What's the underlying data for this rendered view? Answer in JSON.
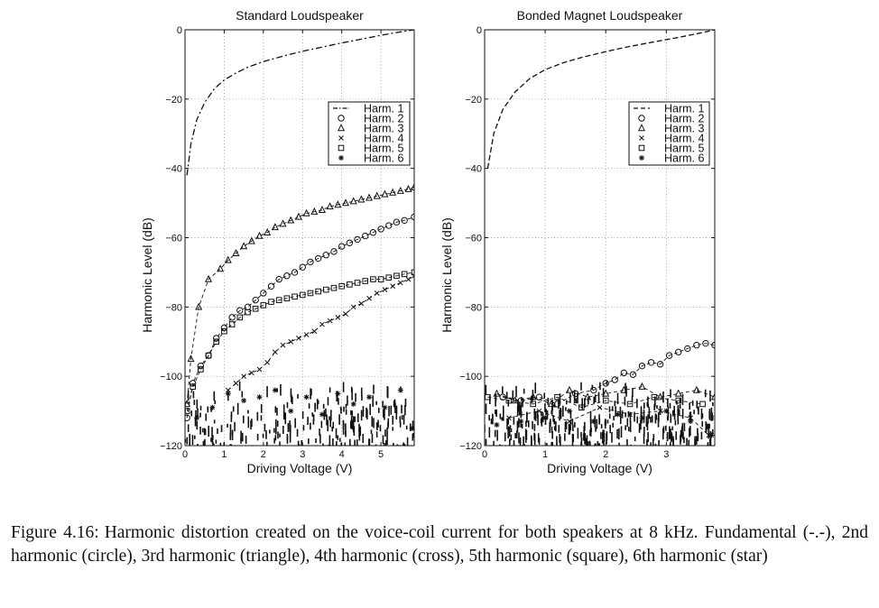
{
  "chart_data": [
    {
      "type": "line",
      "title": "Standard Loudspeaker",
      "xlabel": "Driving Voltage (V)",
      "ylabel": "Harmonic Level (dB)",
      "xlim": [
        0,
        5.85
      ],
      "ylim": [
        -120,
        0
      ],
      "xticks": [
        0,
        1,
        2,
        3,
        4,
        5
      ],
      "yticks": [
        0,
        -20,
        -40,
        -60,
        -80,
        -100,
        -120
      ],
      "grid": true,
      "legend_position": "top-right",
      "series": [
        {
          "name": "Harm. 1",
          "marker": "dashdot",
          "x": [
            0.05,
            0.15,
            0.3,
            0.5,
            0.75,
            1.0,
            1.3,
            1.6,
            2.0,
            2.5,
            3.0,
            3.5,
            4.0,
            4.5,
            5.0,
            5.5,
            5.85
          ],
          "y": [
            -42,
            -33,
            -26,
            -21,
            -17,
            -14.5,
            -12.5,
            -10.8,
            -9.2,
            -7.6,
            -6.2,
            -5.0,
            -3.8,
            -2.7,
            -1.6,
            -0.6,
            0
          ]
        },
        {
          "name": "Harm. 2",
          "marker": "circle",
          "x": [
            0.05,
            0.2,
            0.4,
            0.6,
            0.8,
            1.0,
            1.2,
            1.4,
            1.6,
            1.8,
            2.0,
            2.2,
            2.4,
            2.6,
            2.8,
            3.0,
            3.2,
            3.4,
            3.6,
            3.8,
            4.0,
            4.2,
            4.4,
            4.6,
            4.8,
            5.0,
            5.2,
            5.4,
            5.6,
            5.85
          ],
          "y": [
            -112,
            -102,
            -97,
            -94,
            -89,
            -86,
            -83,
            -81,
            -80,
            -78,
            -76,
            -74,
            -72,
            -71,
            -70,
            -68.5,
            -67,
            -66,
            -65,
            -64,
            -62.5,
            -61.5,
            -60.5,
            -59.5,
            -58.5,
            -57.5,
            -56.5,
            -55.5,
            -55,
            -54
          ]
        },
        {
          "name": "Harm. 3",
          "marker": "triangle",
          "x": [
            0.05,
            0.15,
            0.35,
            0.6,
            0.9,
            1.1,
            1.3,
            1.5,
            1.7,
            1.9,
            2.1,
            2.3,
            2.5,
            2.7,
            2.9,
            3.1,
            3.3,
            3.5,
            3.7,
            3.9,
            4.1,
            4.3,
            4.5,
            4.7,
            4.9,
            5.1,
            5.3,
            5.5,
            5.7,
            5.85
          ],
          "y": [
            -108,
            -95,
            -80,
            -72,
            -69,
            -66.5,
            -64.5,
            -62.5,
            -61,
            -59.5,
            -58.5,
            -57,
            -56,
            -55,
            -54,
            -53,
            -52.5,
            -52,
            -51,
            -50.5,
            -50,
            -49.5,
            -49,
            -48.5,
            -48,
            -47.5,
            -47,
            -46.5,
            -46,
            -45.5
          ]
        },
        {
          "name": "Harm. 4",
          "marker": "cross",
          "x": [
            1.1,
            1.3,
            1.5,
            1.7,
            1.9,
            2.1,
            2.3,
            2.5,
            2.7,
            2.9,
            3.1,
            3.3,
            3.5,
            3.7,
            3.9,
            4.1,
            4.3,
            4.5,
            4.7,
            4.9,
            5.1,
            5.3,
            5.5,
            5.7,
            5.85
          ],
          "y": [
            -104,
            -102,
            -100,
            -99,
            -98,
            -96,
            -93,
            -91,
            -90,
            -89,
            -88,
            -87,
            -85,
            -84,
            -83,
            -82,
            -80,
            -79,
            -77.5,
            -76,
            -75,
            -74,
            -73,
            -72,
            -71
          ]
        },
        {
          "name": "Harm. 5",
          "marker": "square",
          "x": [
            0.05,
            0.2,
            0.4,
            0.6,
            0.8,
            1.0,
            1.2,
            1.4,
            1.6,
            1.8,
            2.0,
            2.2,
            2.4,
            2.6,
            2.8,
            3.0,
            3.2,
            3.4,
            3.6,
            3.8,
            4.0,
            4.2,
            4.4,
            4.6,
            4.8,
            5.0,
            5.2,
            5.4,
            5.6,
            5.85
          ],
          "y": [
            -110,
            -103,
            -98,
            -94,
            -90,
            -87,
            -85,
            -83,
            -81.5,
            -80.5,
            -79.5,
            -78.5,
            -78,
            -77.5,
            -77,
            -76.5,
            -76,
            -75.5,
            -75,
            -74.5,
            -74,
            -73.5,
            -73,
            -72.5,
            -72,
            -72,
            -71.5,
            -71,
            -70.5,
            -70
          ]
        },
        {
          "name": "Harm. 6",
          "marker": "star",
          "x": [
            0.3,
            0.7,
            1.1,
            1.5,
            1.9,
            2.3,
            2.7,
            3.1,
            3.5,
            3.9,
            4.3,
            4.7,
            5.1,
            5.5,
            5.8
          ],
          "y": [
            -112,
            -109,
            -105,
            -107,
            -106,
            -104,
            -110,
            -106,
            -111,
            -105,
            -108,
            -106,
            -109,
            -104,
            -115
          ],
          "noise_band": [
            -120,
            -100
          ]
        }
      ]
    },
    {
      "type": "line",
      "title": "Bonded Magnet Loudspeaker",
      "xlabel": "Driving Voltage (V)",
      "ylabel": "Harmonic Level (dB)",
      "xlim": [
        0,
        3.8
      ],
      "ylim": [
        -120,
        0
      ],
      "xticks": [
        0,
        1,
        2,
        3
      ],
      "yticks": [
        0,
        -20,
        -40,
        -60,
        -80,
        -100,
        -120
      ],
      "grid": true,
      "legend_position": "top-right",
      "series": [
        {
          "name": "Harm. 1",
          "marker": "dashed",
          "x": [
            0.05,
            0.15,
            0.3,
            0.5,
            0.75,
            1.0,
            1.3,
            1.6,
            2.0,
            2.4,
            2.8,
            3.2,
            3.6,
            3.8
          ],
          "y": [
            -40,
            -30,
            -23,
            -18,
            -14,
            -11.5,
            -9.5,
            -8,
            -6.3,
            -4.8,
            -3.5,
            -2.2,
            -0.8,
            0
          ]
        },
        {
          "name": "Harm. 2",
          "marker": "circle",
          "x": [
            0.3,
            0.6,
            0.9,
            1.2,
            1.5,
            1.8,
            2.0,
            2.15,
            2.3,
            2.45,
            2.6,
            2.75,
            2.9,
            3.05,
            3.2,
            3.35,
            3.5,
            3.65,
            3.8
          ],
          "y": [
            -106,
            -107,
            -106,
            -108,
            -105,
            -104,
            -102,
            -101,
            -99,
            -99.5,
            -97,
            -96,
            -96.5,
            -94,
            -93,
            -92,
            -91,
            -90.5,
            -91
          ]
        },
        {
          "name": "Harm. 3",
          "marker": "triangle",
          "x": [
            0.2,
            0.5,
            0.8,
            1.1,
            1.4,
            1.7,
            2.0,
            2.3,
            2.6,
            2.9,
            3.2,
            3.5,
            3.8
          ],
          "y": [
            -105,
            -107,
            -106,
            -108,
            -104,
            -106,
            -105,
            -104,
            -103,
            -106,
            -105,
            -104,
            -106
          ]
        },
        {
          "name": "Harm. 4",
          "marker": "cross",
          "x": [
            0.4,
            0.9,
            1.4,
            1.9,
            2.4,
            2.9,
            3.4,
            3.7
          ],
          "y": [
            -112,
            -110,
            -113,
            -109,
            -111,
            -110,
            -112,
            -117
          ]
        },
        {
          "name": "Harm. 5",
          "marker": "square",
          "x": [
            0.05,
            0.4,
            0.8,
            1.2,
            1.6,
            2.0,
            2.4,
            2.8,
            3.2,
            3.6
          ],
          "y": [
            -106,
            -107,
            -108,
            -106,
            -109,
            -107,
            -108,
            -106,
            -107,
            -108
          ]
        },
        {
          "name": "Harm. 6",
          "marker": "star",
          "x": [
            0.2,
            0.6,
            1.0,
            1.4,
            1.8,
            2.2,
            2.6,
            3.0,
            3.4,
            3.75
          ],
          "y": [
            -114,
            -113,
            -112,
            -110,
            -113,
            -111,
            -112,
            -110,
            -113,
            -117
          ],
          "noise_band": [
            -120,
            -100
          ]
        }
      ]
    }
  ],
  "caption": {
    "label": "Figure 4.16:",
    "text": "Harmonic distortion created on the voice-coil current for both speakers at 8 kHz. Fundamental (-.-), 2nd harmonic (circle), 3rd harmonic (triangle), 4th harmonic (cross), 5th harmonic (square), 6th harmonic (star)"
  }
}
